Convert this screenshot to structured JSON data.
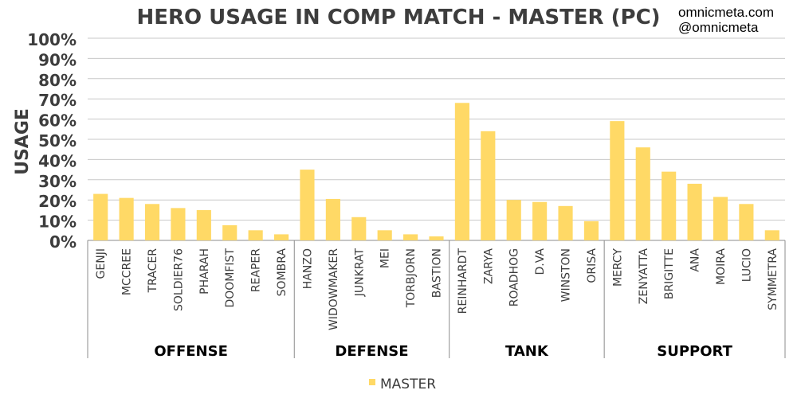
{
  "credits": {
    "site": "omnicmeta.com",
    "handle": "@omnicmeta"
  },
  "colors": {
    "bar": "#FFD966",
    "grid": "#C8C8C8",
    "axis": "#8C8C8C",
    "text": "#3D3D3D"
  },
  "chart_data": {
    "type": "bar",
    "title": "HERO USAGE IN COMP MATCH - MASTER (PC)",
    "ylabel": "USAGE",
    "ylim": [
      0,
      100
    ],
    "y_ticks": [
      "0%",
      "10%",
      "20%",
      "30%",
      "40%",
      "50%",
      "60%",
      "70%",
      "80%",
      "90%",
      "100%"
    ],
    "grid": true,
    "legend_position": "bottom",
    "groups": [
      {
        "name": "OFFENSE",
        "categories": [
          "GENJI",
          "MCCREE",
          "TRACER",
          "SOLDIER76",
          "PHARAH",
          "DOOMFIST",
          "REAPER",
          "SOMBRA"
        ]
      },
      {
        "name": "DEFENSE",
        "categories": [
          "HANZO",
          "WIDOWMAKER",
          "JUNKRAT",
          "MEI",
          "TORBJORN",
          "BASTION"
        ]
      },
      {
        "name": "TANK",
        "categories": [
          "REINHARDT",
          "ZARYA",
          "ROADHOG",
          "D.VA",
          "WINSTON",
          "ORISA"
        ]
      },
      {
        "name": "SUPPORT",
        "categories": [
          "MERCY",
          "ZENYATTA",
          "BRIGITTE",
          "ANA",
          "MOIRA",
          "LUCIO",
          "SYMMETRA"
        ]
      }
    ],
    "categories": [
      "GENJI",
      "MCCREE",
      "TRACER",
      "SOLDIER76",
      "PHARAH",
      "DOOMFIST",
      "REAPER",
      "SOMBRA",
      "HANZO",
      "WIDOWMAKER",
      "JUNKRAT",
      "MEI",
      "TORBJORN",
      "BASTION",
      "REINHARDT",
      "ZARYA",
      "ROADHOG",
      "D.VA",
      "WINSTON",
      "ORISA",
      "MERCY",
      "ZENYATTA",
      "BRIGITTE",
      "ANA",
      "MOIRA",
      "LUCIO",
      "SYMMETRA"
    ],
    "series": [
      {
        "name": "MASTER",
        "values": [
          23,
          21,
          18,
          16,
          15,
          7.5,
          5,
          3,
          35,
          20.5,
          11.5,
          5,
          3,
          2,
          68,
          54,
          20,
          19,
          17,
          9.5,
          59,
          46,
          34,
          28,
          21.5,
          18,
          5
        ]
      }
    ]
  }
}
